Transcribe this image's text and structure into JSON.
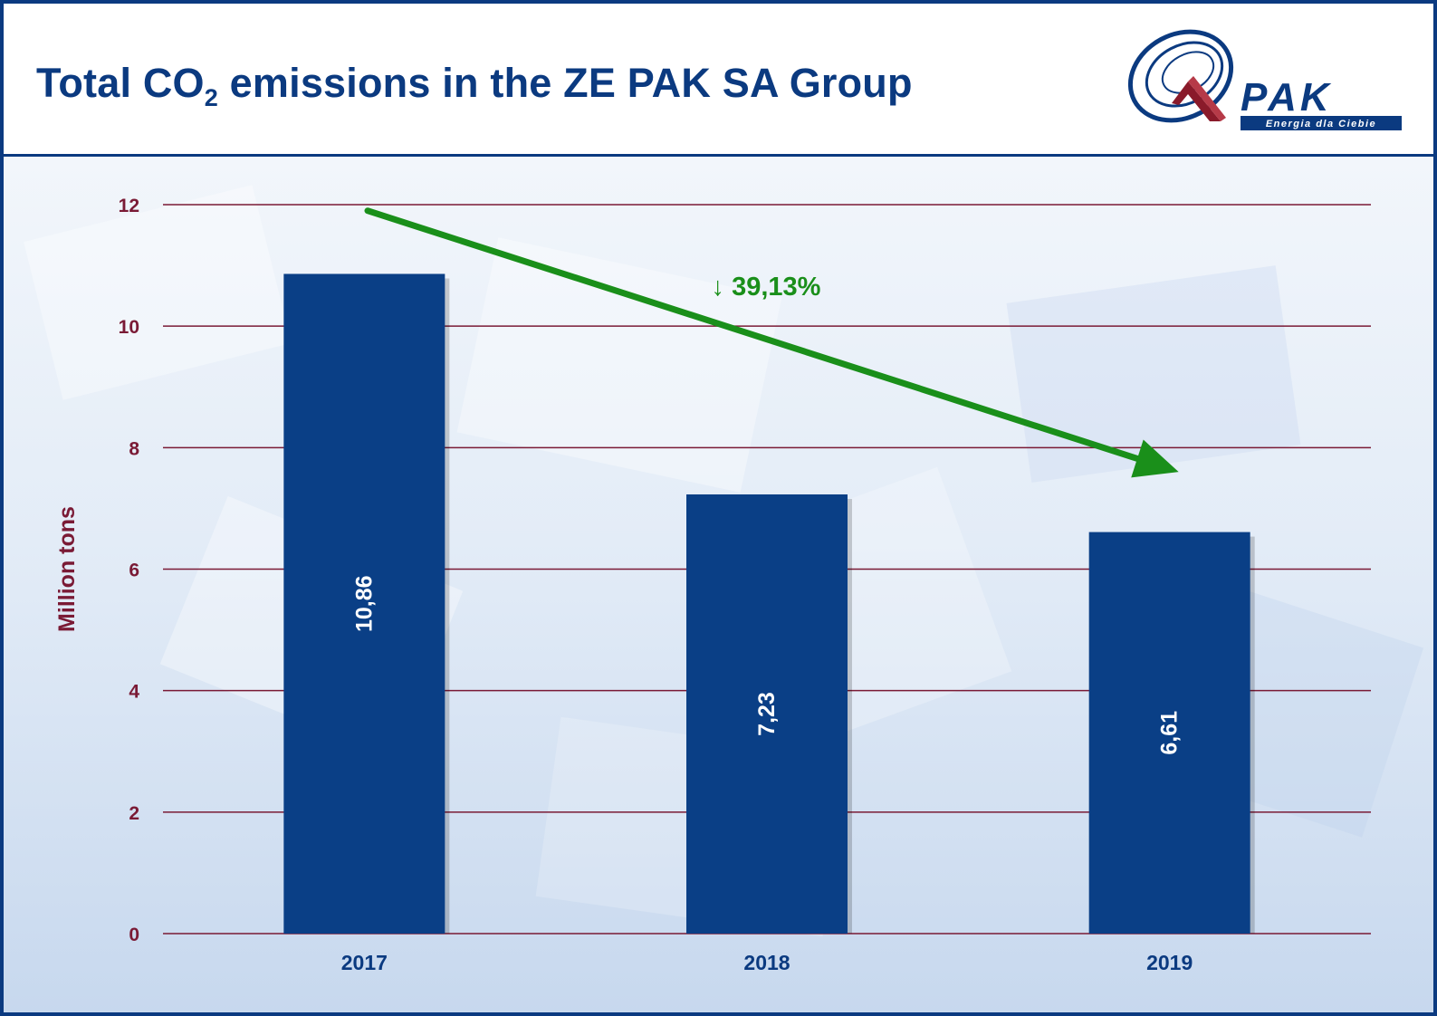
{
  "header": {
    "title_prefix": "Total CO",
    "title_sub": "2",
    "title_suffix": " emissions in the ZE PAK SA Group",
    "logo_text": "PAK",
    "logo_tagline": "Energia dla Ciebie"
  },
  "colors": {
    "bar": "#0a3f86",
    "gridline": "#7a1a35",
    "axis_text": "#7a1a35",
    "category_text": "#0b3a80",
    "arrow": "#1a8f1a",
    "title": "#0b3a80"
  },
  "chart_data": {
    "type": "bar",
    "title": "Total CO2 emissions in the ZE PAK SA Group",
    "ylabel": "Million tons",
    "xlabel": "",
    "categories": [
      "2017",
      "2018",
      "2019"
    ],
    "values": [
      10.86,
      7.23,
      6.61
    ],
    "value_labels": [
      "10,86",
      "7,23",
      "6,61"
    ],
    "ylim": [
      0,
      12
    ],
    "yticks": [
      0,
      2,
      4,
      6,
      8,
      10,
      12
    ],
    "grid": true,
    "annotation": {
      "text": "↓ 39,13%",
      "description_arrow_from_category": "2017",
      "arrow_to_category": "2019"
    }
  }
}
